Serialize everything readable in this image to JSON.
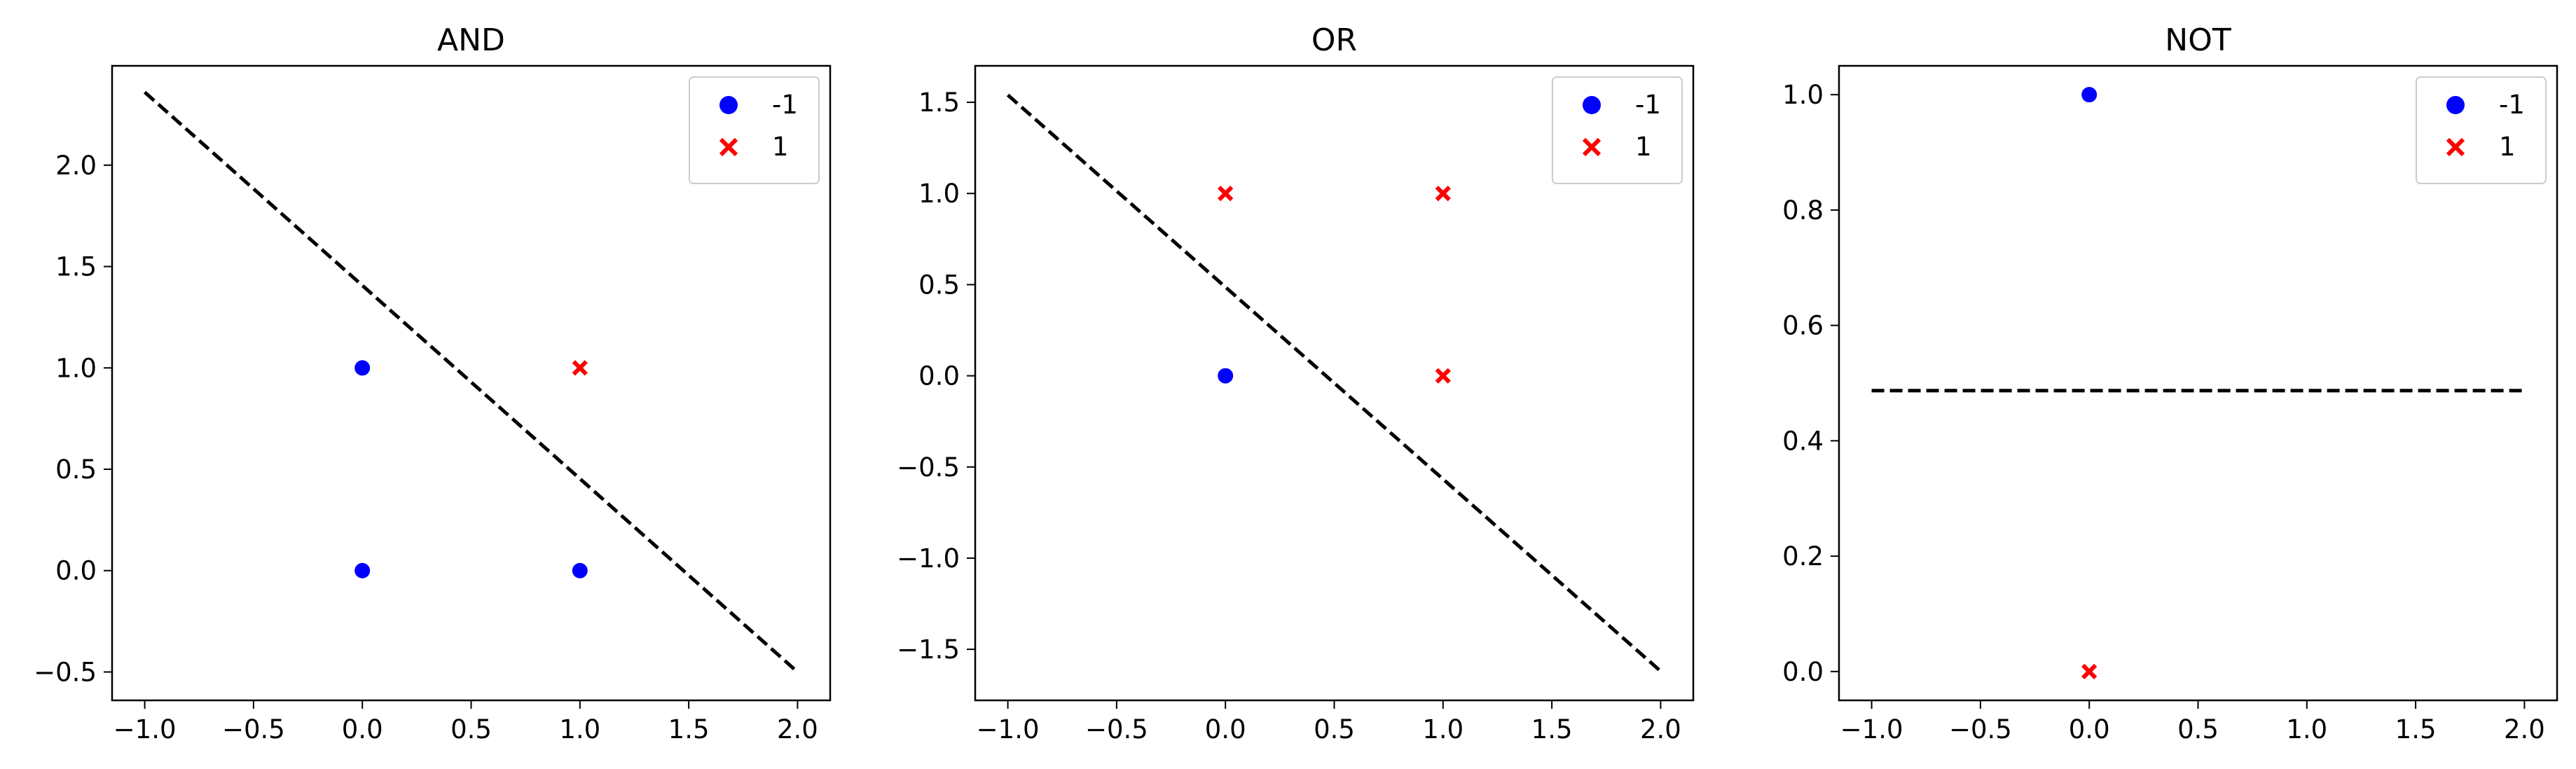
{
  "chart_data": [
    {
      "type": "scatter",
      "title": "AND",
      "xlabel": "",
      "ylabel": "",
      "xlim": [
        -1.15,
        2.15
      ],
      "ylim": [
        -0.64,
        2.49
      ],
      "xticks": [
        -1.0,
        -0.5,
        0.0,
        0.5,
        1.0,
        1.5,
        2.0
      ],
      "xtick_labels": [
        "−1.0",
        "−0.5",
        "0.0",
        "0.5",
        "1.0",
        "1.5",
        "2.0"
      ],
      "yticks": [
        -0.5,
        0.0,
        0.5,
        1.0,
        1.5,
        2.0
      ],
      "ytick_labels": [
        "−0.5",
        "0.0",
        "0.5",
        "1.0",
        "1.5",
        "2.0"
      ],
      "series": [
        {
          "name": "-1",
          "marker": "circle",
          "color": "#0000ff",
          "points": [
            [
              0,
              1
            ],
            [
              0,
              0
            ],
            [
              1,
              0
            ]
          ]
        },
        {
          "name": "1",
          "marker": "x",
          "color": "#ff0000",
          "points": [
            [
              1,
              1
            ]
          ]
        }
      ],
      "decision_boundary": {
        "style": "dashed",
        "color": "#000000",
        "points": [
          [
            -1.0,
            2.36
          ],
          [
            2.0,
            -0.5
          ]
        ]
      },
      "legend": "top-right"
    },
    {
      "type": "scatter",
      "title": "OR",
      "xlabel": "",
      "ylabel": "",
      "xlim": [
        -1.15,
        2.15
      ],
      "ylim": [
        -1.78,
        1.7
      ],
      "xticks": [
        -1.0,
        -0.5,
        0.0,
        0.5,
        1.0,
        1.5,
        2.0
      ],
      "xtick_labels": [
        "−1.0",
        "−0.5",
        "0.0",
        "0.5",
        "1.0",
        "1.5",
        "2.0"
      ],
      "yticks": [
        -1.5,
        -1.0,
        -0.5,
        0.0,
        0.5,
        1.0,
        1.5
      ],
      "ytick_labels": [
        "−1.5",
        "−1.0",
        "−0.5",
        "0.0",
        "0.5",
        "1.0",
        "1.5"
      ],
      "series": [
        {
          "name": "-1",
          "marker": "circle",
          "color": "#0000ff",
          "points": [
            [
              0,
              0
            ]
          ]
        },
        {
          "name": "1",
          "marker": "x",
          "color": "#ff0000",
          "points": [
            [
              0,
              1
            ],
            [
              1,
              1
            ],
            [
              1,
              0
            ]
          ]
        }
      ],
      "decision_boundary": {
        "style": "dashed",
        "color": "#000000",
        "points": [
          [
            -1.0,
            1.54
          ],
          [
            2.0,
            -1.62
          ]
        ]
      },
      "legend": "top-right"
    },
    {
      "type": "scatter",
      "title": "NOT",
      "xlabel": "",
      "ylabel": "",
      "xlim": [
        -1.15,
        2.15
      ],
      "ylim": [
        -0.05,
        1.05
      ],
      "xticks": [
        -1.0,
        -0.5,
        0.0,
        0.5,
        1.0,
        1.5,
        2.0
      ],
      "xtick_labels": [
        "−1.0",
        "−0.5",
        "0.0",
        "0.5",
        "1.0",
        "1.5",
        "2.0"
      ],
      "yticks": [
        0.0,
        0.2,
        0.4,
        0.6,
        0.8,
        1.0
      ],
      "ytick_labels": [
        "0.0",
        "0.2",
        "0.4",
        "0.6",
        "0.8",
        "1.0"
      ],
      "series": [
        {
          "name": "-1",
          "marker": "circle",
          "color": "#0000ff",
          "points": [
            [
              0,
              1
            ]
          ]
        },
        {
          "name": "1",
          "marker": "x",
          "color": "#ff0000",
          "points": [
            [
              0,
              0
            ]
          ]
        }
      ],
      "decision_boundary": {
        "style": "dashed",
        "color": "#000000",
        "points": [
          [
            -1.0,
            0.487
          ],
          [
            2.0,
            0.487
          ]
        ]
      },
      "legend": "top-right"
    }
  ]
}
